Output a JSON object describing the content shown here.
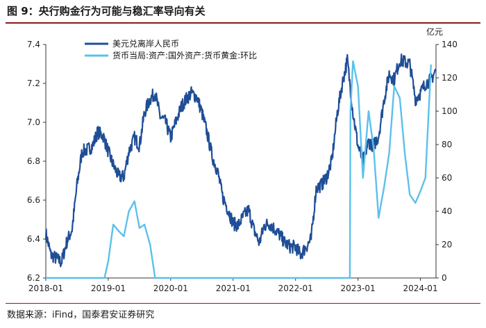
{
  "header": {
    "title": "图 9：央行购金行为可能与稳汇率导向有关"
  },
  "footer": {
    "source": "数据来源：iFind，国泰君安证券研究"
  },
  "chart_data": {
    "type": "line",
    "title": "图 9：央行购金行为可能与稳汇率导向有关",
    "x_ticks": [
      "2018-01",
      "2019-01",
      "2020-01",
      "2021-01",
      "2022-01",
      "2023-01",
      "2024-01"
    ],
    "y_left": {
      "label": "",
      "ylim": [
        6.2,
        7.4
      ],
      "ticks": [
        "6.2",
        "6.4",
        "6.6",
        "6.8",
        "7.0",
        "7.2",
        "7.4"
      ]
    },
    "y_right": {
      "label": "亿元",
      "ylim": [
        0,
        140
      ],
      "ticks": [
        "0",
        "20",
        "40",
        "60",
        "80",
        "100",
        "120",
        "140"
      ]
    },
    "series": [
      {
        "name": "美元兑离岸人民币",
        "axis": "left",
        "color": "#1f4e96",
        "points": [
          [
            2018.0,
            6.43
          ],
          [
            2018.08,
            6.32
          ],
          [
            2018.17,
            6.3
          ],
          [
            2018.25,
            6.28
          ],
          [
            2018.33,
            6.38
          ],
          [
            2018.42,
            6.45
          ],
          [
            2018.5,
            6.68
          ],
          [
            2018.58,
            6.85
          ],
          [
            2018.67,
            6.86
          ],
          [
            2018.75,
            6.88
          ],
          [
            2018.83,
            6.95
          ],
          [
            2018.92,
            6.93
          ],
          [
            2019.0,
            6.85
          ],
          [
            2019.08,
            6.78
          ],
          [
            2019.17,
            6.72
          ],
          [
            2019.25,
            6.72
          ],
          [
            2019.33,
            6.85
          ],
          [
            2019.42,
            6.92
          ],
          [
            2019.5,
            6.88
          ],
          [
            2019.58,
            7.05
          ],
          [
            2019.67,
            7.12
          ],
          [
            2019.75,
            7.15
          ],
          [
            2019.83,
            7.03
          ],
          [
            2019.92,
            7.0
          ],
          [
            2020.0,
            6.92
          ],
          [
            2020.08,
            7.0
          ],
          [
            2020.17,
            7.08
          ],
          [
            2020.25,
            7.12
          ],
          [
            2020.33,
            7.15
          ],
          [
            2020.42,
            7.13
          ],
          [
            2020.5,
            7.05
          ],
          [
            2020.58,
            6.95
          ],
          [
            2020.67,
            6.82
          ],
          [
            2020.75,
            6.75
          ],
          [
            2020.83,
            6.62
          ],
          [
            2020.92,
            6.55
          ],
          [
            2021.0,
            6.48
          ],
          [
            2021.08,
            6.47
          ],
          [
            2021.17,
            6.52
          ],
          [
            2021.25,
            6.55
          ],
          [
            2021.33,
            6.45
          ],
          [
            2021.42,
            6.38
          ],
          [
            2021.5,
            6.47
          ],
          [
            2021.58,
            6.48
          ],
          [
            2021.67,
            6.45
          ],
          [
            2021.75,
            6.42
          ],
          [
            2021.83,
            6.38
          ],
          [
            2021.92,
            6.36
          ],
          [
            2022.0,
            6.36
          ],
          [
            2022.08,
            6.32
          ],
          [
            2022.17,
            6.36
          ],
          [
            2022.25,
            6.4
          ],
          [
            2022.33,
            6.66
          ],
          [
            2022.42,
            6.68
          ],
          [
            2022.5,
            6.72
          ],
          [
            2022.58,
            6.8
          ],
          [
            2022.67,
            7.05
          ],
          [
            2022.75,
            7.2
          ],
          [
            2022.83,
            7.32
          ],
          [
            2022.92,
            7.05
          ],
          [
            2023.0,
            6.88
          ],
          [
            2023.08,
            6.8
          ],
          [
            2023.17,
            6.9
          ],
          [
            2023.25,
            6.88
          ],
          [
            2023.33,
            6.93
          ],
          [
            2023.42,
            7.12
          ],
          [
            2023.5,
            7.25
          ],
          [
            2023.58,
            7.22
          ],
          [
            2023.67,
            7.32
          ],
          [
            2023.75,
            7.31
          ],
          [
            2023.83,
            7.3
          ],
          [
            2023.92,
            7.12
          ],
          [
            2024.0,
            7.15
          ],
          [
            2024.08,
            7.2
          ],
          [
            2024.17,
            7.22
          ],
          [
            2024.25,
            7.27
          ]
        ]
      },
      {
        "name": "货币当局:资产:国外资产:货币黄金:环比",
        "axis": "right",
        "color": "#5bc0eb",
        "points": [
          [
            2018.0,
            0
          ],
          [
            2018.5,
            0
          ],
          [
            2018.94,
            0
          ],
          [
            2019.0,
            10
          ],
          [
            2019.08,
            32
          ],
          [
            2019.17,
            28
          ],
          [
            2019.25,
            25
          ],
          [
            2019.33,
            40
          ],
          [
            2019.42,
            46
          ],
          [
            2019.5,
            30
          ],
          [
            2019.58,
            32
          ],
          [
            2019.67,
            20
          ],
          [
            2019.75,
            0
          ],
          [
            2020.5,
            0
          ],
          [
            2021.5,
            0
          ],
          [
            2022.5,
            0
          ],
          [
            2022.87,
            0
          ],
          [
            2022.88,
            100
          ],
          [
            2022.92,
            130
          ],
          [
            2023.0,
            115
          ],
          [
            2023.08,
            60
          ],
          [
            2023.17,
            100
          ],
          [
            2023.25,
            78
          ],
          [
            2023.33,
            36
          ],
          [
            2023.42,
            55
          ],
          [
            2023.5,
            75
          ],
          [
            2023.58,
            115
          ],
          [
            2023.67,
            108
          ],
          [
            2023.75,
            75
          ],
          [
            2023.83,
            50
          ],
          [
            2023.92,
            45
          ],
          [
            2024.0,
            52
          ],
          [
            2024.08,
            60
          ],
          [
            2024.17,
            128
          ]
        ]
      }
    ],
    "legend": [
      "美元兑离岸人民币",
      "货币当局:资产:国外资产:货币黄金:环比"
    ],
    "legend_position": "top-left",
    "grid": false
  }
}
